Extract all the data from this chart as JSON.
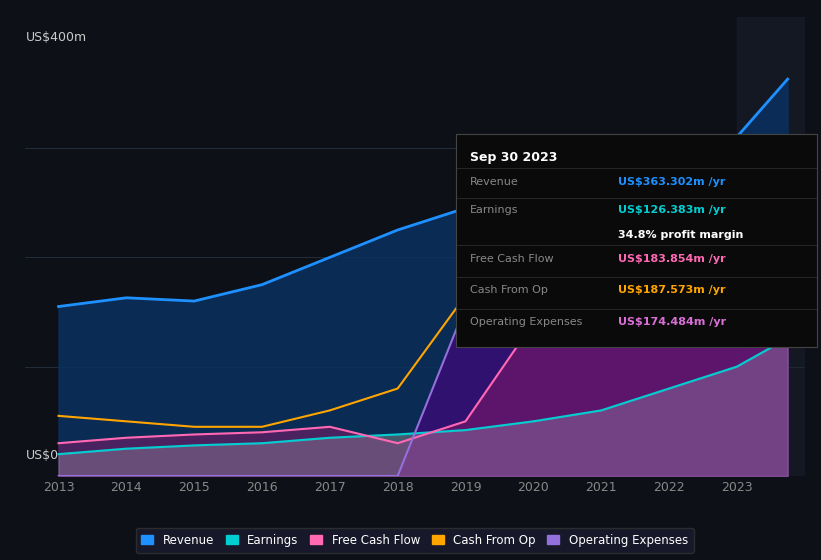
{
  "bg_color": "#0d1117",
  "plot_bg_color": "#0d1117",
  "title": "Sep 30 2023",
  "ylabel": "US$400m",
  "y0_label": "US$0",
  "years": [
    2013,
    2014,
    2015,
    2016,
    2017,
    2018,
    2019,
    2020,
    2021,
    2022,
    2023,
    2023.75
  ],
  "revenue": [
    155,
    163,
    160,
    175,
    200,
    225,
    245,
    265,
    250,
    300,
    310,
    363
  ],
  "earnings": [
    20,
    25,
    28,
    30,
    35,
    38,
    42,
    50,
    60,
    80,
    100,
    126
  ],
  "free_cash_flow": [
    30,
    35,
    38,
    40,
    45,
    30,
    50,
    140,
    155,
    165,
    165,
    184
  ],
  "cash_from_op": [
    55,
    50,
    45,
    45,
    60,
    80,
    165,
    160,
    200,
    175,
    168,
    188
  ],
  "operating_expenses": [
    0,
    0,
    0,
    0,
    0,
    0,
    155,
    150,
    160,
    155,
    155,
    174
  ],
  "revenue_color": "#1e90ff",
  "earnings_color": "#00ced1",
  "free_cash_flow_color": "#ff69b4",
  "cash_from_op_color": "#ffa500",
  "operating_expenses_color": "#8a2be2",
  "revenue_fill": "#0a3d6b",
  "earnings_fill": "#1a6b5a",
  "info_box": {
    "date": "Sep 30 2023",
    "revenue_label": "Revenue",
    "revenue_value": "US$363.302m /yr",
    "revenue_color": "#1e90ff",
    "earnings_label": "Earnings",
    "earnings_value": "US$126.383m /yr",
    "earnings_color": "#00ced1",
    "margin_value": "34.8% profit margin",
    "fcf_label": "Free Cash Flow",
    "fcf_value": "US$183.854m /yr",
    "fcf_color": "#ff69b4",
    "cfop_label": "Cash From Op",
    "cfop_value": "US$187.573m /yr",
    "cfop_color": "#ffa500",
    "opex_label": "Operating Expenses",
    "opex_value": "US$174.484m /yr",
    "opex_color": "#da70d6"
  },
  "legend": [
    {
      "label": "Revenue",
      "color": "#1e90ff"
    },
    {
      "label": "Earnings",
      "color": "#00ced1"
    },
    {
      "label": "Free Cash Flow",
      "color": "#ff69b4"
    },
    {
      "label": "Cash From Op",
      "color": "#ffa500"
    },
    {
      "label": "Operating Expenses",
      "color": "#9370db"
    }
  ],
  "ylim": [
    0,
    420
  ],
  "xlim": [
    2012.5,
    2024.0
  ]
}
